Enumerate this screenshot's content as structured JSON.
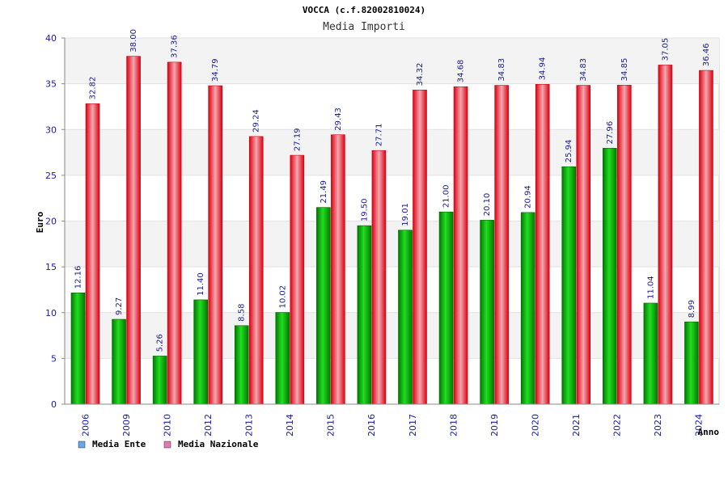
{
  "chart_data": {
    "type": "bar",
    "title": "VOCCA (c.f.82002810024)",
    "subtitle": "Media Importi",
    "xlabel": "Anno",
    "ylabel": "Euro",
    "ylim": [
      0,
      40
    ],
    "yticks": [
      0,
      5,
      10,
      15,
      20,
      25,
      30,
      35,
      40
    ],
    "categories": [
      "2006",
      "2009",
      "2010",
      "2012",
      "2013",
      "2014",
      "2015",
      "2016",
      "2017",
      "2018",
      "2019",
      "2020",
      "2021",
      "2022",
      "2023",
      "2024"
    ],
    "series": [
      {
        "name": "Media Ente",
        "color": "#00aa00",
        "legend_color": "#6aa6e8",
        "values": [
          12.16,
          9.27,
          5.26,
          11.4,
          8.58,
          10.02,
          21.49,
          19.5,
          19.01,
          21.0,
          20.1,
          20.94,
          25.94,
          27.96,
          11.04,
          8.99
        ],
        "labels": [
          "12.16",
          "9.27",
          "5.26",
          "11.40",
          "8.58",
          "10.02",
          "21.49",
          "19.50",
          "19.01",
          "21.00",
          "20.10",
          "20.94",
          "25.94",
          "27.96",
          "11.04",
          "8.99"
        ]
      },
      {
        "name": "Media Nazionale",
        "color": "#e8001a",
        "legend_color": "#e07ab0",
        "values": [
          32.82,
          38.0,
          37.36,
          34.79,
          29.24,
          27.19,
          29.43,
          27.71,
          34.32,
          34.68,
          34.83,
          34.94,
          34.83,
          34.85,
          37.05,
          36.46
        ],
        "labels": [
          "32.82",
          "38.00",
          "37.36",
          "34.79",
          "29.24",
          "27.19",
          "29.43",
          "27.71",
          "34.32",
          "34.68",
          "34.83",
          "34.94",
          "34.83",
          "34.85",
          "37.05",
          "36.46"
        ]
      }
    ],
    "grid": true,
    "legend": "bottom-left"
  }
}
